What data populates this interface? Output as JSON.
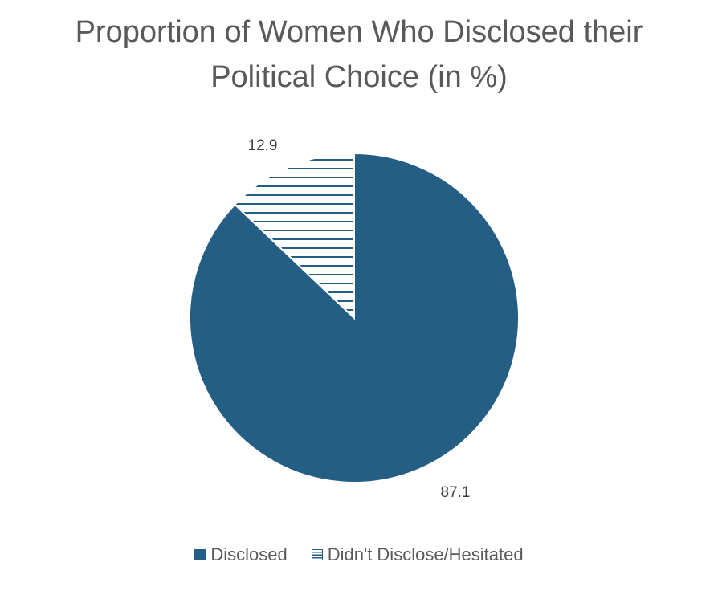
{
  "chart_data": {
    "type": "pie",
    "title": "Proportion of Women Who Disclosed their Political Choice (in %)",
    "title_lines": [
      "Proportion of Women Who Disclosed their",
      "Political Choice (in %)"
    ],
    "slices": [
      {
        "label": "Disclosed",
        "value": 87.1,
        "display": "87.1",
        "fill": "solid",
        "color": "#255e84"
      },
      {
        "label": "Didn't Disclose/Hesitated",
        "value": 12.9,
        "display": "12.9",
        "fill": "horizontal-hatch",
        "color": "#255e84"
      }
    ],
    "legend_position": "bottom"
  }
}
